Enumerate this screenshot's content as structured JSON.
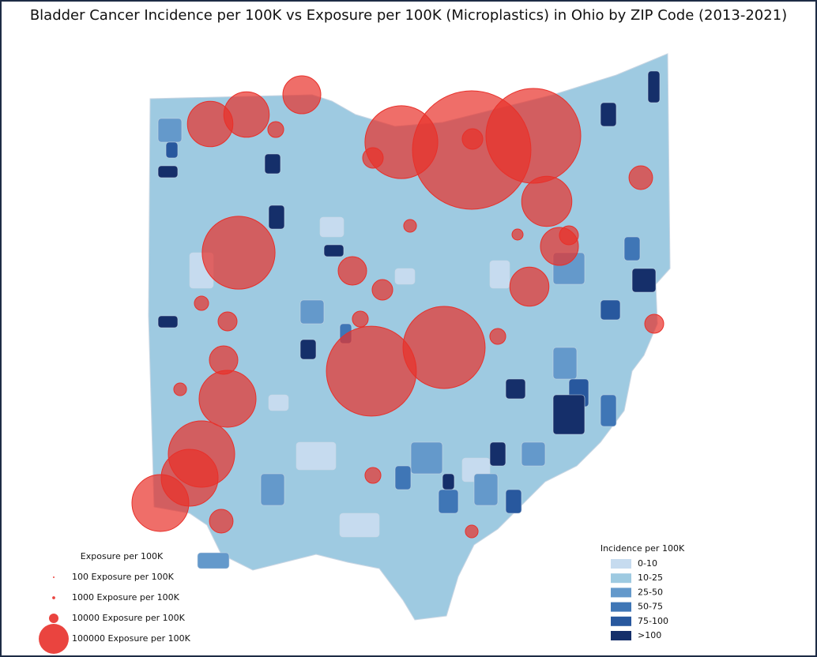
{
  "title": "Bladder Cancer Incidence per 100K vs Exposure per 100K (Microplastics) in Ohio by ZIP Code (2013-2021)",
  "size_legend": {
    "title": "Exposure per 100K",
    "entries": [
      {
        "value": 100,
        "label": "100 Exposure per 100K"
      },
      {
        "value": 1000,
        "label": "1000 Exposure per 100K"
      },
      {
        "value": 10000,
        "label": "10000 Exposure per 100K"
      },
      {
        "value": 100000,
        "label": "100000 Exposure per 100K"
      }
    ]
  },
  "color_legend": {
    "title": "Incidence per 100K",
    "entries": [
      {
        "label": "0-10",
        "color": "#c6dbef"
      },
      {
        "label": "10-25",
        "color": "#9ecae1"
      },
      {
        "label": "25-50",
        "color": "#6499cb"
      },
      {
        "label": "50-75",
        "color": "#3f76b6"
      },
      {
        "label": "75-100",
        "color": "#28589e"
      },
      {
        "label": ">100",
        "color": "#152f6a"
      }
    ]
  },
  "bubbles": {
    "color": "#e8302a",
    "values": [
      1560000,
      1000000,
      590000,
      900000,
      750000,
      590000,
      490000,
      360000,
      360000,
      230000,
      230000,
      160000,
      360000,
      280000,
      160000,
      170000,
      90000,
      47000,
      90000,
      62000,
      62000,
      40000,
      28000,
      40000,
      28000,
      47000,
      47000,
      40000,
      28000,
      18000,
      28000,
      18000,
      22500,
      18000,
      13600
    ]
  }
}
